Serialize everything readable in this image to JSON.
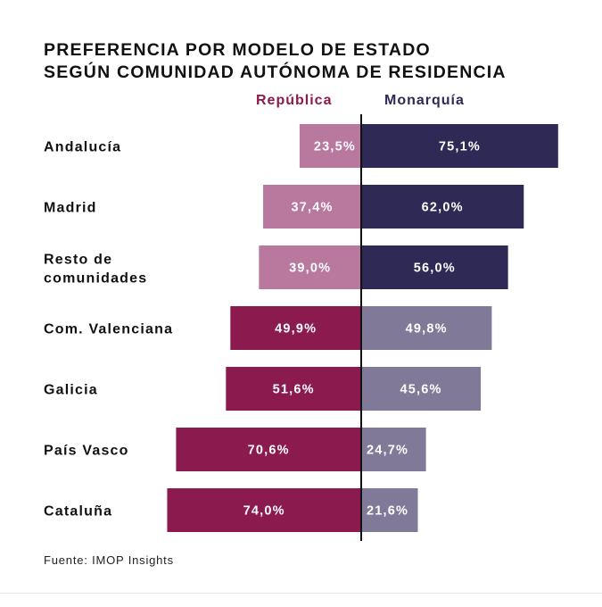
{
  "chart_data": {
    "type": "bar",
    "orientation": "horizontal-diverging",
    "title": "PREFERENCIA POR MODELO DE ESTADO\nSEGÚN COMUNIDAD AUTÓNOMA DE RESIDENCIA",
    "title_lines": [
      "PREFERENCIA POR MODELO DE ESTADO",
      "SEGÚN COMUNIDAD AUTÓNOMA DE RESIDENCIA"
    ],
    "categories": [
      [
        "Andalucía"
      ],
      [
        "Madrid"
      ],
      [
        "Resto de",
        "comunidades"
      ],
      [
        "Com. Valenciana"
      ],
      [
        "Galicia"
      ],
      [
        "País Vasco"
      ],
      [
        "Cataluña"
      ]
    ],
    "series": [
      {
        "name": "República",
        "direction": "left",
        "values": [
          23.5,
          37.4,
          39.0,
          49.9,
          51.6,
          70.6,
          74.0
        ],
        "labels": [
          "23,5%",
          "37,4%",
          "39,0%",
          "49,9%",
          "51,6%",
          "70,6%",
          "74,0%"
        ]
      },
      {
        "name": "Monarquía",
        "direction": "right",
        "values": [
          75.1,
          62.0,
          56.0,
          49.8,
          45.6,
          24.7,
          21.6
        ],
        "labels": [
          "75,1%",
          "62,0%",
          "56,0%",
          "49,8%",
          "45,6%",
          "24,7%",
          "21,6%"
        ]
      }
    ],
    "winner_side": [
      "Monarquía",
      "Monarquía",
      "Monarquía",
      "República",
      "República",
      "República",
      "República"
    ],
    "colors": {
      "republica_strong": "#8b1a4f",
      "republica_weak": "#b9799f",
      "monarquia_strong": "#2e2a55",
      "monarquia_weak": "#807a98",
      "axis": "#111111"
    },
    "xlabel": "",
    "ylabel": "",
    "xlim": [
      0,
      80
    ],
    "grid": false,
    "legend_position": "top-center",
    "source": "Fuente: IMOP Insights"
  }
}
